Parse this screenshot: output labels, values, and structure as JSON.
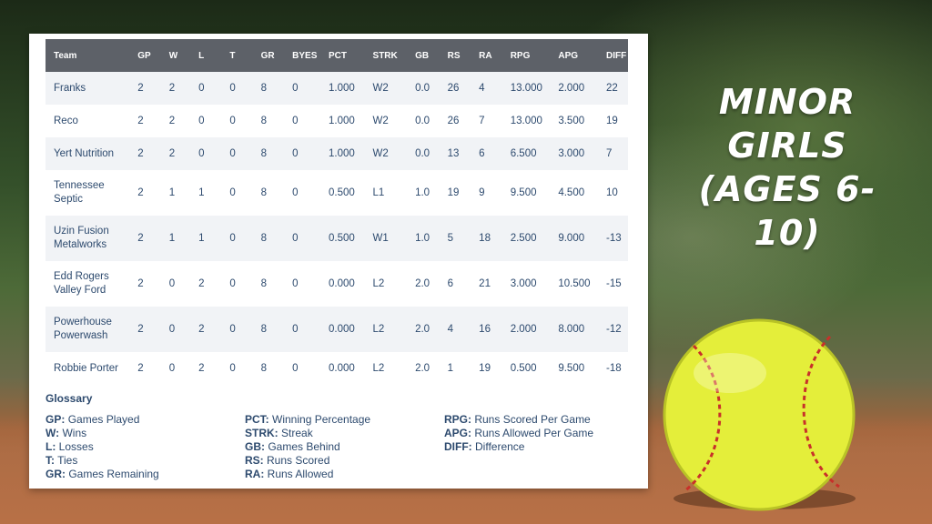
{
  "title": {
    "line1": "MINOR GIRLS",
    "line2": "(AGES 6-10)"
  },
  "table": {
    "columns": [
      "Team",
      "GP",
      "W",
      "L",
      "T",
      "GR",
      "BYES",
      "PCT",
      "STRK",
      "GB",
      "RS",
      "RA",
      "RPG",
      "APG",
      "DIFF"
    ],
    "rows": [
      {
        "team": "Franks",
        "gp": "2",
        "w": "2",
        "l": "0",
        "t": "0",
        "gr": "8",
        "byes": "0",
        "pct": "1.000",
        "strk": "W2",
        "gb": "0.0",
        "rs": "26",
        "ra": "4",
        "rpg": "13.000",
        "apg": "2.000",
        "diff": "22"
      },
      {
        "team": "Reco",
        "gp": "2",
        "w": "2",
        "l": "0",
        "t": "0",
        "gr": "8",
        "byes": "0",
        "pct": "1.000",
        "strk": "W2",
        "gb": "0.0",
        "rs": "26",
        "ra": "7",
        "rpg": "13.000",
        "apg": "3.500",
        "diff": "19"
      },
      {
        "team": "Yert Nutrition",
        "gp": "2",
        "w": "2",
        "l": "0",
        "t": "0",
        "gr": "8",
        "byes": "0",
        "pct": "1.000",
        "strk": "W2",
        "gb": "0.0",
        "rs": "13",
        "ra": "6",
        "rpg": "6.500",
        "apg": "3.000",
        "diff": "7"
      },
      {
        "team": "Tennessee Septic",
        "gp": "2",
        "w": "1",
        "l": "1",
        "t": "0",
        "gr": "8",
        "byes": "0",
        "pct": "0.500",
        "strk": "L1",
        "gb": "1.0",
        "rs": "19",
        "ra": "9",
        "rpg": "9.500",
        "apg": "4.500",
        "diff": "10"
      },
      {
        "team": "Uzin Fusion Metalworks",
        "gp": "2",
        "w": "1",
        "l": "1",
        "t": "0",
        "gr": "8",
        "byes": "0",
        "pct": "0.500",
        "strk": "W1",
        "gb": "1.0",
        "rs": "5",
        "ra": "18",
        "rpg": "2.500",
        "apg": "9.000",
        "diff": "-13"
      },
      {
        "team": "Edd Rogers Valley Ford",
        "gp": "2",
        "w": "0",
        "l": "2",
        "t": "0",
        "gr": "8",
        "byes": "0",
        "pct": "0.000",
        "strk": "L2",
        "gb": "2.0",
        "rs": "6",
        "ra": "21",
        "rpg": "3.000",
        "apg": "10.500",
        "diff": "-15"
      },
      {
        "team": "Powerhouse Powerwash",
        "gp": "2",
        "w": "0",
        "l": "2",
        "t": "0",
        "gr": "8",
        "byes": "0",
        "pct": "0.000",
        "strk": "L2",
        "gb": "2.0",
        "rs": "4",
        "ra": "16",
        "rpg": "2.000",
        "apg": "8.000",
        "diff": "-12"
      },
      {
        "team": "Robbie Porter",
        "gp": "2",
        "w": "0",
        "l": "2",
        "t": "0",
        "gr": "8",
        "byes": "0",
        "pct": "0.000",
        "strk": "L2",
        "gb": "2.0",
        "rs": "1",
        "ra": "19",
        "rpg": "0.500",
        "apg": "9.500",
        "diff": "-18"
      }
    ]
  },
  "glossary": {
    "title": "Glossary",
    "col1": [
      {
        "abbr": "GP:",
        "desc": "Games Played"
      },
      {
        "abbr": "W:",
        "desc": "Wins"
      },
      {
        "abbr": "L:",
        "desc": "Losses"
      },
      {
        "abbr": "T:",
        "desc": "Ties"
      },
      {
        "abbr": "GR:",
        "desc": "Games Remaining"
      }
    ],
    "col2": [
      {
        "abbr": "PCT:",
        "desc": "Winning Percentage"
      },
      {
        "abbr": "STRK:",
        "desc": "Streak"
      },
      {
        "abbr": "GB:",
        "desc": "Games Behind"
      },
      {
        "abbr": "RS:",
        "desc": "Runs Scored"
      },
      {
        "abbr": "RA:",
        "desc": "Runs Allowed"
      }
    ],
    "col3": [
      {
        "abbr": "RPG:",
        "desc": "Runs Scored Per Game"
      },
      {
        "abbr": "APG:",
        "desc": "Runs Allowed Per Game"
      },
      {
        "abbr": "DIFF:",
        "desc": "Difference"
      }
    ]
  },
  "colors": {
    "header_bg": "#5d6168",
    "text": "#2d4a6e",
    "ball": "#e4ee3a",
    "stitch": "#c8302a"
  },
  "icons": {
    "ball": "softball-icon"
  }
}
